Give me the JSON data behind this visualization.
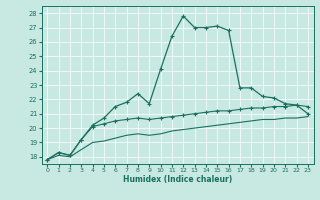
{
  "xlabel": "Humidex (Indice chaleur)",
  "xlim": [
    -0.5,
    23.5
  ],
  "ylim": [
    17.5,
    28.5
  ],
  "yticks": [
    18,
    19,
    20,
    21,
    22,
    23,
    24,
    25,
    26,
    27,
    28
  ],
  "xticks": [
    0,
    1,
    2,
    3,
    4,
    5,
    6,
    7,
    8,
    9,
    10,
    11,
    12,
    13,
    14,
    15,
    16,
    17,
    18,
    19,
    20,
    21,
    22,
    23
  ],
  "bg_color": "#c8e8e2",
  "grid_color": "#b0d8d0",
  "line_color": "#1a7060",
  "line1_x": [
    0,
    1,
    2,
    3,
    4,
    5,
    6,
    7,
    8,
    9,
    10,
    11,
    12,
    13,
    14,
    15,
    16,
    17,
    18,
    19,
    20,
    21,
    22,
    23
  ],
  "line1_y": [
    17.8,
    18.3,
    18.1,
    19.2,
    20.2,
    20.7,
    21.5,
    21.8,
    22.4,
    21.7,
    24.1,
    26.4,
    27.8,
    27.0,
    27.0,
    27.1,
    26.8,
    22.8,
    22.8,
    22.2,
    22.1,
    21.7,
    21.6,
    21.0
  ],
  "line2_x": [
    0,
    1,
    2,
    3,
    4,
    5,
    6,
    7,
    8,
    9,
    10,
    11,
    12,
    13,
    14,
    15,
    16,
    17,
    18,
    19,
    20,
    21,
    22,
    23
  ],
  "line2_y": [
    17.8,
    18.3,
    18.1,
    19.2,
    20.1,
    20.3,
    20.5,
    20.6,
    20.7,
    20.6,
    20.7,
    20.8,
    20.9,
    21.0,
    21.1,
    21.2,
    21.2,
    21.3,
    21.4,
    21.4,
    21.5,
    21.5,
    21.6,
    21.5
  ],
  "line3_x": [
    0,
    1,
    2,
    3,
    4,
    5,
    6,
    7,
    8,
    9,
    10,
    11,
    12,
    13,
    14,
    15,
    16,
    17,
    18,
    19,
    20,
    21,
    22,
    23
  ],
  "line3_y": [
    17.8,
    18.1,
    18.0,
    18.5,
    19.0,
    19.1,
    19.3,
    19.5,
    19.6,
    19.5,
    19.6,
    19.8,
    19.9,
    20.0,
    20.1,
    20.2,
    20.3,
    20.4,
    20.5,
    20.6,
    20.6,
    20.7,
    20.7,
    20.8
  ]
}
